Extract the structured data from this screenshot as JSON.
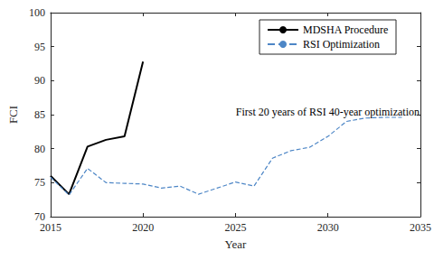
{
  "chart_data": {
    "type": "line",
    "x_label": "Year",
    "y_label": "FCI",
    "annotation": "First 20 years of RSI 40-year optimization",
    "xlim": [
      2015,
      2035
    ],
    "xticks": [
      2015,
      2020,
      2025,
      2030,
      2035
    ],
    "ylim": [
      70,
      100
    ],
    "yticks": [
      70,
      75,
      80,
      85,
      90,
      95,
      100
    ],
    "grid": false,
    "legend": "upper right",
    "series": [
      {
        "name": "MDSHA Procedure",
        "color": "#000000",
        "line_style": "solid",
        "x": [
          2015,
          2016,
          2017,
          2018,
          2019,
          2020
        ],
        "values": [
          76.0,
          73.3,
          80.3,
          81.3,
          81.8,
          92.8
        ]
      },
      {
        "name": "RSI Optimization",
        "color": "#4d86c6",
        "line_style": "dashed",
        "x": [
          2015,
          2016,
          2017,
          2018,
          2019,
          2020,
          2021,
          2022,
          2023,
          2024,
          2025,
          2026,
          2027,
          2028,
          2029,
          2030,
          2031,
          2032,
          2033,
          2034
        ],
        "values": [
          75.8,
          73.2,
          77.1,
          75.0,
          74.9,
          74.8,
          74.2,
          74.5,
          73.3,
          74.2,
          75.1,
          74.5,
          78.6,
          79.7,
          80.2,
          81.8,
          84.0,
          84.5,
          84.6,
          84.6
        ]
      }
    ]
  }
}
